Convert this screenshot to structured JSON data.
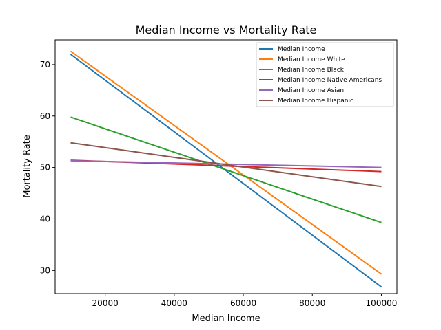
{
  "chart_data": {
    "type": "line",
    "title": "Median Income vs Mortality Rate",
    "xlabel": "Median Income",
    "ylabel": "Mortality Rate",
    "xlim": [
      5500,
      104500
    ],
    "ylim": [
      25.5,
      74.8
    ],
    "xticks": [
      20000,
      40000,
      60000,
      80000,
      100000
    ],
    "yticks": [
      30,
      40,
      50,
      60,
      70
    ],
    "x": [
      10000,
      100000
    ],
    "series": [
      {
        "name": "Median Income",
        "color": "#1f77b4",
        "values": [
          72.0,
          26.8
        ]
      },
      {
        "name": "Median Income White",
        "color": "#ff7f0e",
        "values": [
          72.6,
          29.3
        ]
      },
      {
        "name": "Median Income Black",
        "color": "#2ca02c",
        "values": [
          59.8,
          39.3
        ]
      },
      {
        "name": "Median Income Native Americans",
        "color": "#d62728",
        "values": [
          51.4,
          49.2
        ]
      },
      {
        "name": "Median Income Asian",
        "color": "#9467bd",
        "values": [
          51.3,
          50.0
        ]
      },
      {
        "name": "Median Income Hispanic",
        "color": "#8c564b",
        "values": [
          54.8,
          46.3
        ]
      }
    ],
    "grid": false,
    "legend": "top-right"
  }
}
